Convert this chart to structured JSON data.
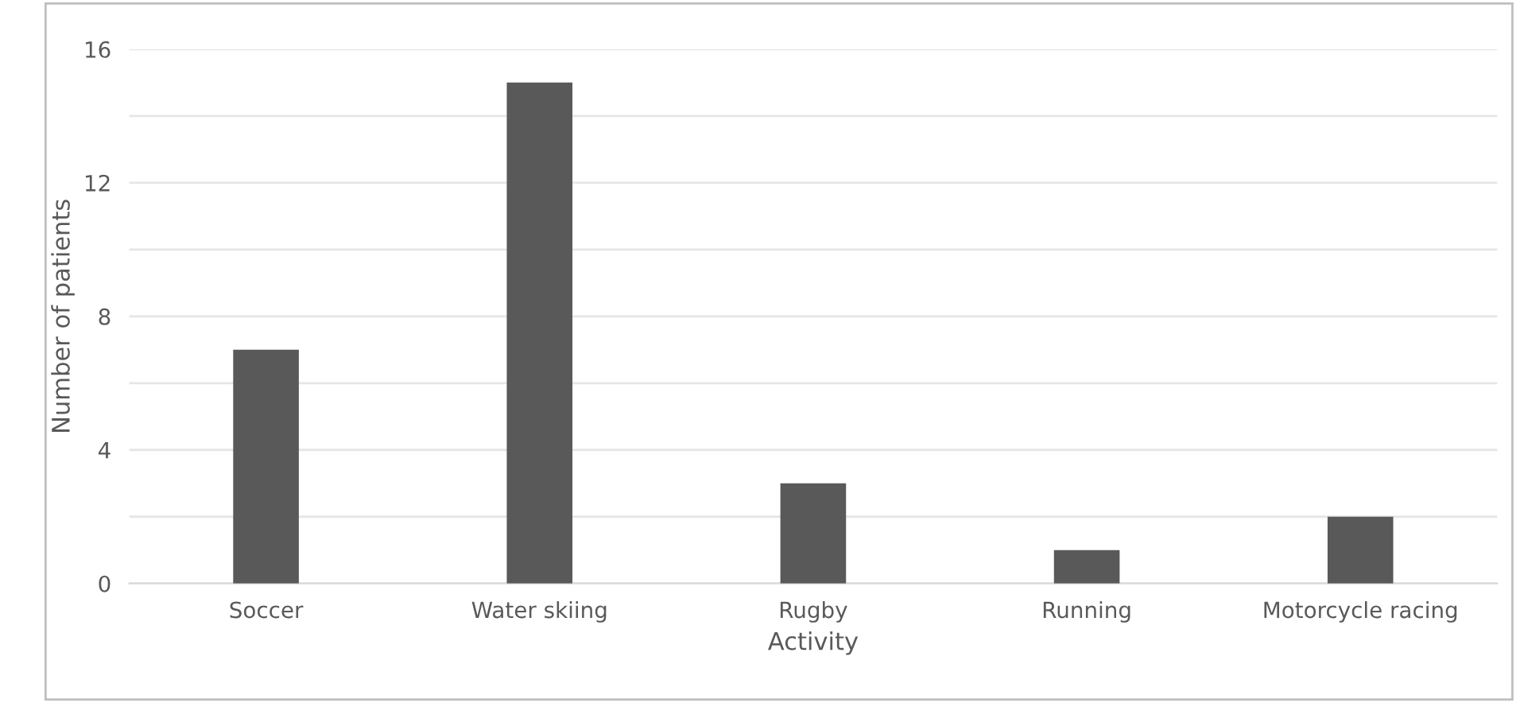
{
  "chart_data": {
    "type": "bar",
    "xlabel": "Activity",
    "ylabel": "Number of patients",
    "categories": [
      "Soccer",
      "Water skiing",
      "Rugby",
      "Running",
      "Motorcycle racing"
    ],
    "values": [
      7,
      15,
      3,
      1,
      2
    ],
    "color": "#595959",
    "ylim": [
      0,
      16
    ],
    "yticks": [
      0,
      {
        "value": 2,
        "label": null
      },
      4,
      {
        "value": 6,
        "label": null
      },
      8,
      {
        "value": 10,
        "label": null
      },
      12,
      {
        "value": 14,
        "label": null
      },
      16
    ],
    "grid": "y"
  }
}
